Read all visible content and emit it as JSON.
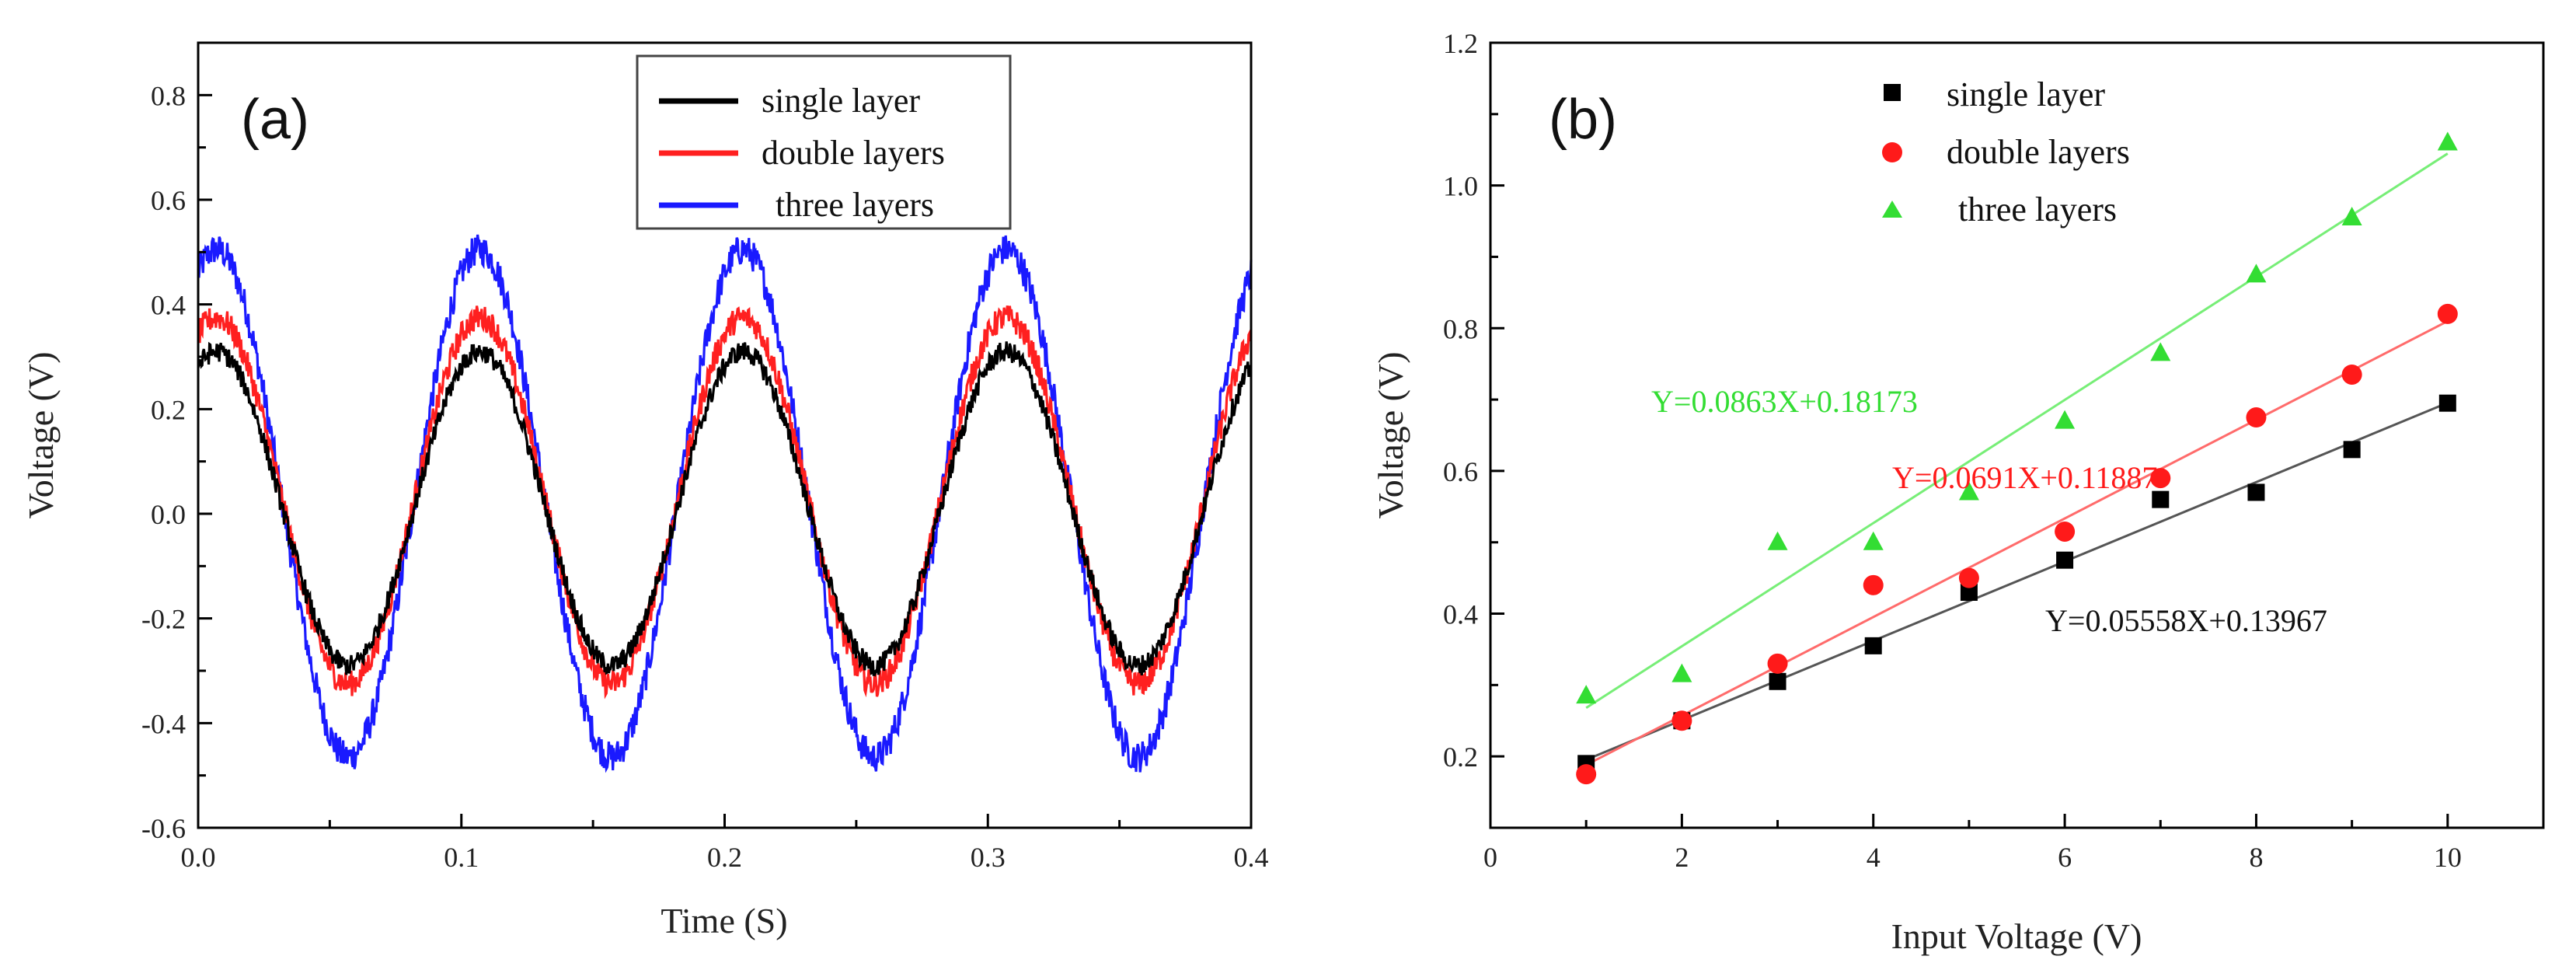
{
  "chart_data": [
    {
      "type": "line",
      "panel_label": "(a)",
      "xlabel": "Time (S)",
      "ylabel": "Voltage (V)",
      "xlim": [
        0.0,
        0.4
      ],
      "ylim": [
        -0.6,
        0.9
      ],
      "x_ticks": [
        "0.0",
        "0.1",
        "0.2",
        "0.3",
        "0.4"
      ],
      "y_ticks": [
        "-0.6",
        "-0.4",
        "-0.2",
        "0.0",
        "0.2",
        "0.4",
        "0.6",
        "0.8"
      ],
      "frequency_hz": 10,
      "legend_position": "top-right",
      "series": [
        {
          "name": "single layer",
          "color": "#000000",
          "amplitude": 0.3,
          "offset": 0.01,
          "peak_time": 0.007,
          "noise": 0.02
        },
        {
          "name": "double layers",
          "color": "#ff2020",
          "amplitude": 0.35,
          "offset": 0.025,
          "peak_time": 0.007,
          "noise": 0.025
        },
        {
          "name": "three layers",
          "color": "#1a1aff",
          "amplitude": 0.485,
          "offset": 0.02,
          "peak_time": 0.007,
          "noise": 0.03
        }
      ]
    },
    {
      "type": "scatter",
      "panel_label": "(b)",
      "xlabel": "Input Voltage (V)",
      "ylabel": "Voltage (V)",
      "xlim": [
        0,
        11
      ],
      "ylim": [
        0.1,
        1.2
      ],
      "x_ticks": [
        "0",
        "2",
        "4",
        "6",
        "8",
        "10"
      ],
      "y_ticks": [
        "0.2",
        "0.4",
        "0.6",
        "0.8",
        "1.0",
        "1.2"
      ],
      "legend_position": "top-left",
      "x": [
        1,
        2,
        3,
        4,
        5,
        6,
        7,
        8,
        9,
        10
      ],
      "series": [
        {
          "name": "single layer",
          "marker": "square",
          "color": "#000000",
          "line_color": "#555555",
          "values": [
            0.19,
            0.25,
            0.305,
            0.355,
            0.43,
            0.475,
            0.56,
            0.57,
            0.63,
            0.695
          ],
          "fit": {
            "slope": 0.05558,
            "intercept": 0.13967,
            "label": "Y=0.05558X+0.13967"
          }
        },
        {
          "name": "double layers",
          "marker": "circle",
          "color": "#ff1a1a",
          "line_color": "#ff6b6b",
          "values": [
            0.175,
            0.25,
            0.33,
            0.44,
            0.45,
            0.515,
            0.59,
            0.675,
            0.735,
            0.82
          ],
          "fit": {
            "slope": 0.0691,
            "intercept": 0.11887,
            "label": "Y=0.0691X+0.11887"
          }
        },
        {
          "name": "three layers",
          "marker": "triangle",
          "color": "#33dd33",
          "line_color": "#77ee77",
          "values": [
            0.285,
            0.315,
            0.5,
            0.5,
            0.57,
            0.67,
            0.765,
            0.875,
            0.955,
            1.06
          ],
          "fit": {
            "slope": 0.0863,
            "intercept": 0.18173,
            "label": "Y=0.0863X+0.18173"
          }
        }
      ]
    }
  ]
}
